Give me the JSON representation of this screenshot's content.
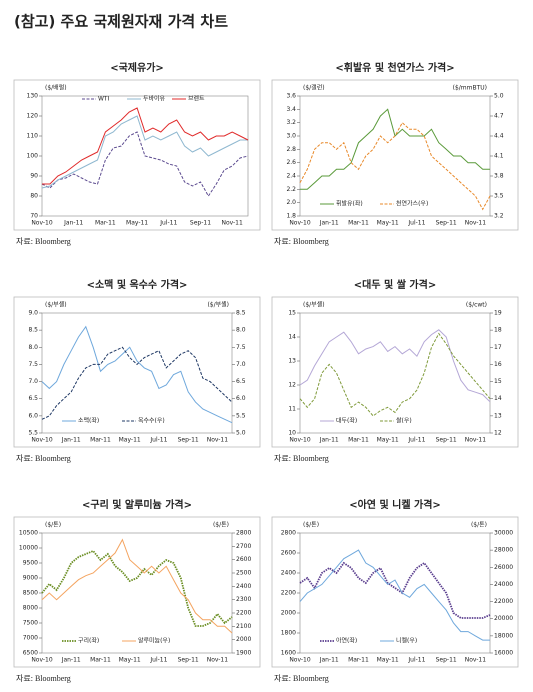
{
  "header": {
    "title": "(참고) 주요 국제원자재 가격 차트"
  },
  "chart_data": [
    {
      "type": "line",
      "title": "<국제유가>",
      "ylabel": "($/배럴)",
      "source": "자료: Bloomberg",
      "legend": "top",
      "categories": [
        "Nov-10",
        null,
        null,
        null,
        "Jan-11",
        null,
        null,
        null,
        "Mar-11",
        null,
        null,
        null,
        "May-11",
        null,
        null,
        null,
        "Jul-11",
        null,
        null,
        null,
        "Sep-11",
        null,
        null,
        null,
        "Nov-11",
        null,
        null
      ],
      "ylim": [
        70,
        130
      ],
      "yticks": [
        70,
        80,
        90,
        100,
        110,
        120,
        130
      ],
      "series": [
        {
          "name": "WTI",
          "color": "#5b4a8f",
          "dash": true,
          "values": [
            86,
            84,
            88,
            89,
            91,
            89,
            87,
            86,
            98,
            104,
            105,
            110,
            112,
            100,
            99,
            98,
            96,
            95,
            87,
            85,
            87,
            80,
            86,
            93,
            95,
            99,
            100
          ]
        },
        {
          "name": "두바이유",
          "color": "#8fb8d0",
          "values": [
            84,
            85,
            88,
            90,
            92,
            94,
            96,
            98,
            110,
            112,
            116,
            118,
            120,
            108,
            110,
            108,
            110,
            112,
            105,
            102,
            104,
            100,
            102,
            104,
            106,
            108,
            108
          ]
        },
        {
          "name": "브렌트",
          "color": "#e02a2a",
          "values": [
            86,
            86,
            90,
            92,
            95,
            98,
            100,
            102,
            112,
            115,
            118,
            122,
            124,
            112,
            114,
            112,
            116,
            118,
            112,
            110,
            112,
            108,
            110,
            110,
            112,
            110,
            108
          ]
        }
      ]
    },
    {
      "type": "line",
      "title": "<휘발유 및 천연가스 가격>",
      "ylabel": "($/갤런)",
      "y2label": "($/mmBTU)",
      "source": "자료: Bloomberg",
      "legend": "bottom",
      "categories": [
        "Nov-10",
        null,
        null,
        null,
        "Jan-11",
        null,
        null,
        null,
        "Mar-11",
        null,
        null,
        null,
        "May-11",
        null,
        null,
        null,
        "Jul-11",
        null,
        null,
        null,
        "Sep-11",
        null,
        null,
        null,
        "Nov-11",
        null,
        null
      ],
      "ylim": [
        1.8,
        3.6
      ],
      "yticks": [
        1.8,
        {
          "value": 2,
          "label": "2.0"
        },
        2.2,
        2.4,
        2.6,
        2.8,
        {
          "value": 3,
          "label": "3.0"
        },
        3.2,
        3.4,
        3.6
      ],
      "y2lim": [
        3.2,
        5
      ],
      "y2ticks": [
        3.2,
        3.5,
        3.8,
        4.1,
        4.4,
        4.7,
        {
          "value": 5,
          "label": "5.0"
        }
      ],
      "series": [
        {
          "name": "휘발유(좌)",
          "color": "#5a9a3a",
          "values": [
            2.2,
            2.2,
            2.3,
            2.4,
            2.4,
            2.5,
            2.5,
            2.6,
            2.9,
            3.0,
            3.1,
            3.3,
            3.4,
            3.0,
            3.1,
            3.0,
            3.0,
            3.0,
            3.1,
            2.9,
            2.8,
            2.7,
            2.7,
            2.6,
            2.6,
            2.5,
            2.5
          ]
        },
        {
          "name": "천연가스(우)",
          "color": "#e8892a",
          "dash": true,
          "axis": "y2",
          "values": [
            3.7,
            3.9,
            4.2,
            4.3,
            4.3,
            4.2,
            4.3,
            4.0,
            3.9,
            4.1,
            4.2,
            4.4,
            4.3,
            4.4,
            4.6,
            4.5,
            4.5,
            4.4,
            4.1,
            4.0,
            3.9,
            3.8,
            3.7,
            3.6,
            3.5,
            3.3,
            3.5
          ]
        }
      ]
    },
    {
      "type": "line",
      "title": "<소맥 및 옥수수 가격>",
      "ylabel": "($/부셸)",
      "y2label": "($/부셸)",
      "source": "자료: Bloomberg",
      "legend": "bottom",
      "categories": [
        "Nov-10",
        null,
        null,
        null,
        "Jan-11",
        null,
        null,
        null,
        "Mar-11",
        null,
        null,
        null,
        "May-11",
        null,
        null,
        null,
        "Jul-11",
        null,
        null,
        null,
        "Sep-11",
        null,
        null,
        null,
        "Nov-11",
        null,
        null
      ],
      "ylim": [
        5.5,
        9
      ],
      "yticks": [
        5.5,
        {
          "value": 6,
          "label": "6.0"
        },
        6.5,
        {
          "value": 7,
          "label": "7.0"
        },
        7.5,
        {
          "value": 8,
          "label": "8.0"
        },
        8.5,
        {
          "value": 9,
          "label": "9.0"
        }
      ],
      "y2lim": [
        5,
        8.5
      ],
      "y2ticks": [
        {
          "value": 5,
          "label": "5.0"
        },
        5.5,
        {
          "value": 6,
          "label": "6.0"
        },
        6.5,
        {
          "value": 7,
          "label": "7.0"
        },
        7.5,
        {
          "value": 8,
          "label": "8.0"
        },
        8.5
      ],
      "series": [
        {
          "name": "소맥(좌)",
          "color": "#6fa8dc",
          "values": [
            7.0,
            6.8,
            7.0,
            7.5,
            7.9,
            8.3,
            8.6,
            8.0,
            7.3,
            7.5,
            7.6,
            7.8,
            8.0,
            7.6,
            7.4,
            7.3,
            6.8,
            6.9,
            7.2,
            7.3,
            6.7,
            6.4,
            6.2,
            6.1,
            6.0,
            5.9,
            5.8
          ]
        },
        {
          "name": "옥수수(우)",
          "color": "#1f3864",
          "dash": true,
          "axis": "y2",
          "values": [
            5.4,
            5.5,
            5.8,
            6.0,
            6.2,
            6.6,
            6.9,
            7.0,
            7.0,
            7.3,
            7.4,
            7.5,
            7.2,
            7.0,
            7.2,
            7.3,
            7.4,
            6.9,
            7.1,
            7.3,
            7.4,
            7.2,
            6.6,
            6.5,
            6.3,
            6.1,
            5.9
          ]
        }
      ]
    },
    {
      "type": "line",
      "title": "<대두 및 쌀 가격>",
      "ylabel": "($/부셸)",
      "y2label": "($/cwt)",
      "source": "자료: Bloomberg",
      "legend": "bottom",
      "categories": [
        "Nov-10",
        null,
        null,
        null,
        "Jan-11",
        null,
        null,
        null,
        "Mar-11",
        null,
        null,
        null,
        "May-11",
        null,
        null,
        null,
        "Jul-11",
        null,
        null,
        null,
        "Sep-11",
        null,
        null,
        null,
        "Nov-11",
        null,
        null
      ],
      "ylim": [
        10,
        15
      ],
      "yticks": [
        10,
        11,
        12,
        13,
        14,
        15
      ],
      "y2lim": [
        12,
        19
      ],
      "y2ticks": [
        12,
        13,
        14,
        15,
        16,
        17,
        18,
        19
      ],
      "series": [
        {
          "name": "대두(좌)",
          "color": "#b4a7d6",
          "values": [
            12.0,
            12.2,
            12.8,
            13.3,
            13.8,
            14.0,
            14.2,
            13.8,
            13.3,
            13.5,
            13.6,
            13.8,
            13.4,
            13.6,
            13.3,
            13.5,
            13.2,
            13.8,
            14.1,
            14.3,
            14.0,
            13.0,
            12.2,
            11.8,
            11.7,
            11.6,
            11.3
          ]
        },
        {
          "name": "쌀(우)",
          "color": "#7f9a3a",
          "dash": true,
          "axis": "y2",
          "values": [
            14.0,
            13.5,
            14.0,
            15.5,
            16.0,
            15.5,
            14.5,
            13.5,
            13.8,
            13.5,
            13.0,
            13.3,
            13.5,
            13.2,
            13.8,
            14.0,
            14.5,
            15.5,
            17.0,
            17.8,
            17.2,
            16.5,
            16.0,
            15.5,
            15.0,
            14.5,
            14.0
          ]
        }
      ]
    },
    {
      "type": "line",
      "title": "<구리 및 알루미늄 가격>",
      "ylabel": "($/톤)",
      "y2label": "($/톤)",
      "source": "자료: Bloomberg",
      "legend": "bottom",
      "categories": [
        "Nov-10",
        null,
        null,
        null,
        "Jan-11",
        null,
        null,
        null,
        "Mar-11",
        null,
        null,
        null,
        "May-11",
        null,
        null,
        null,
        "Jul-11",
        null,
        null,
        null,
        "Sep-11",
        null,
        null,
        null,
        "Nov-11",
        null,
        null
      ],
      "ylim": [
        6500,
        10500
      ],
      "yticks": [
        6500,
        7000,
        7500,
        8000,
        8500,
        9000,
        9500,
        10000,
        10500
      ],
      "y2lim": [
        1900,
        2800
      ],
      "y2ticks": [
        1900,
        2000,
        2100,
        2200,
        2300,
        2400,
        2500,
        2600,
        2700,
        2800
      ],
      "series": [
        {
          "name": "구리(좌)",
          "color": "#6b8e23",
          "dash": true,
          "width": 3,
          "values": [
            8500,
            8800,
            8600,
            9000,
            9500,
            9700,
            9800,
            9900,
            9600,
            9800,
            9400,
            9200,
            8900,
            9000,
            9300,
            9100,
            9400,
            9600,
            9500,
            9000,
            8000,
            7400,
            7400,
            7500,
            7800,
            7500,
            7700
          ]
        },
        {
          "name": "알루미늄(우)",
          "color": "#f4a460",
          "axis": "y2",
          "values": [
            2300,
            2350,
            2300,
            2350,
            2400,
            2450,
            2480,
            2500,
            2550,
            2600,
            2650,
            2750,
            2600,
            2550,
            2500,
            2550,
            2500,
            2550,
            2450,
            2350,
            2300,
            2200,
            2150,
            2150,
            2100,
            2100,
            2050
          ]
        }
      ]
    },
    {
      "type": "line",
      "title": "<아연 및 니켈 가격>",
      "ylabel": "($/톤)",
      "y2label": "($/톤)",
      "source": "자료: Bloomberg",
      "legend": "bottom",
      "categories": [
        "Nov-10",
        null,
        null,
        null,
        "Jan-11",
        null,
        null,
        null,
        "Mar-11",
        null,
        null,
        null,
        "May-11",
        null,
        null,
        null,
        "Jul-11",
        null,
        null,
        null,
        "Sep-11",
        null,
        null,
        null,
        "Nov-11",
        null,
        null
      ],
      "ylim": [
        1600,
        2800
      ],
      "yticks": [
        1600,
        1800,
        2000,
        2200,
        2400,
        2600,
        2800
      ],
      "y2lim": [
        16000,
        30000
      ],
      "y2ticks": [
        16000,
        18000,
        20000,
        22000,
        24000,
        26000,
        28000,
        30000
      ],
      "series": [
        {
          "name": "아연(좌)",
          "color": "#5b3f8f",
          "dash": true,
          "width": 3,
          "values": [
            2300,
            2350,
            2250,
            2400,
            2450,
            2400,
            2500,
            2450,
            2350,
            2300,
            2400,
            2450,
            2300,
            2250,
            2200,
            2350,
            2450,
            2500,
            2400,
            2300,
            2200,
            2000,
            1950,
            1950,
            1950,
            1950,
            1980
          ]
        },
        {
          "name": "니켈(우)",
          "color": "#6fa8dc",
          "axis": "y2",
          "values": [
            22000,
            23000,
            23500,
            24000,
            25000,
            26000,
            27000,
            27500,
            28000,
            26500,
            26000,
            25000,
            24000,
            24500,
            23000,
            22500,
            23500,
            24000,
            23000,
            22000,
            21000,
            19500,
            18500,
            18500,
            18000,
            17500,
            17500
          ]
        }
      ]
    }
  ]
}
